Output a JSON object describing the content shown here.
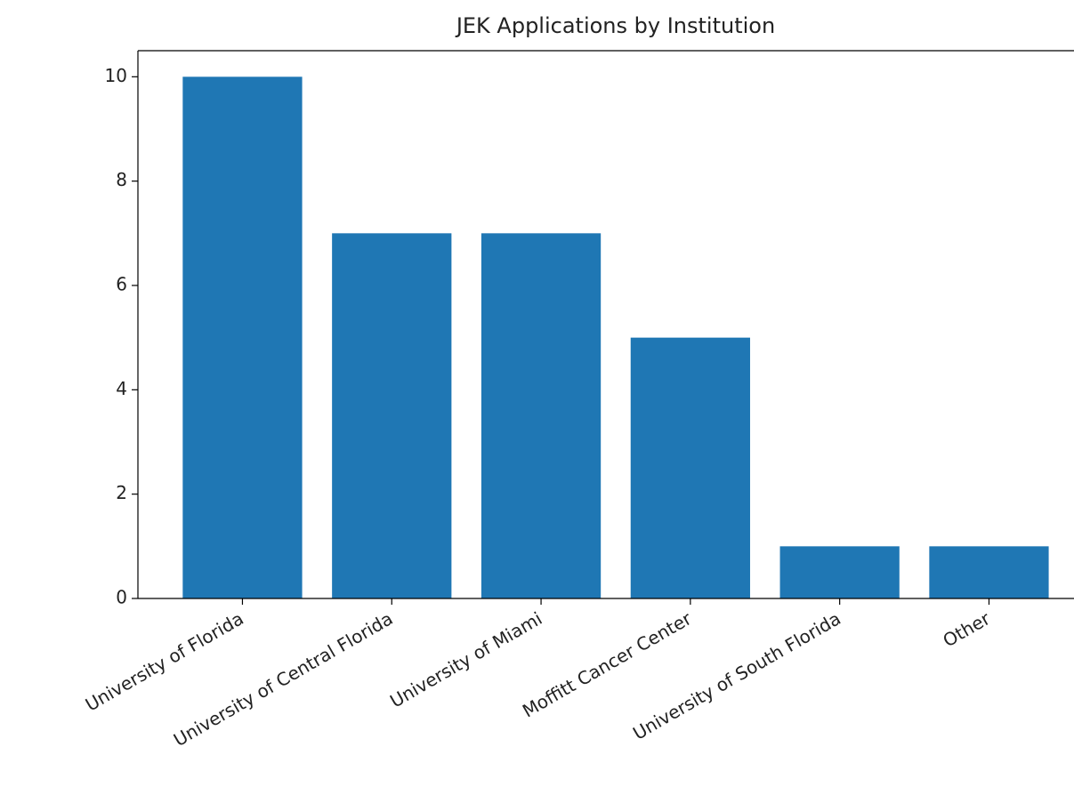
{
  "chart_data": {
    "type": "bar",
    "title": "JEK Applications by Institution",
    "categories": [
      "University of Florida",
      "University of Central Florida",
      "University of Miami",
      "Moffitt Cancer Center",
      "University of South Florida",
      "Other"
    ],
    "values": [
      10,
      7,
      7,
      5,
      1,
      1
    ],
    "color": "#1f77b4",
    "ylim": [
      0,
      10.5
    ],
    "yticks": [
      0,
      2,
      4,
      6,
      8,
      10
    ]
  }
}
